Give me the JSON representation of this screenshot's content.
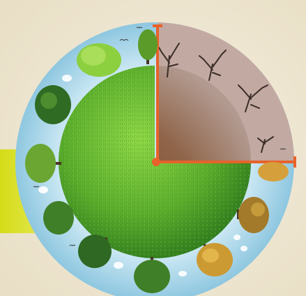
{
  "scene": {
    "subject": "earth-globe-half-green-half-barren",
    "icons": [
      "grass-globe-icon",
      "tree-icon",
      "dead-tree-icon",
      "cloud-icon",
      "bird-icon"
    ],
    "colors": {
      "background": "#efe6d2",
      "yellow_accent": "#d8df1a",
      "grass_light": "#7fcf3a",
      "grass_dark": "#2f7a1c",
      "water_ring": "#9fd0e6",
      "barren_soil": "#8a5a38",
      "barren_haze": "#b99a8c",
      "axis_orange": "#e8622a",
      "tree_autumn": "#d7a13b"
    }
  }
}
